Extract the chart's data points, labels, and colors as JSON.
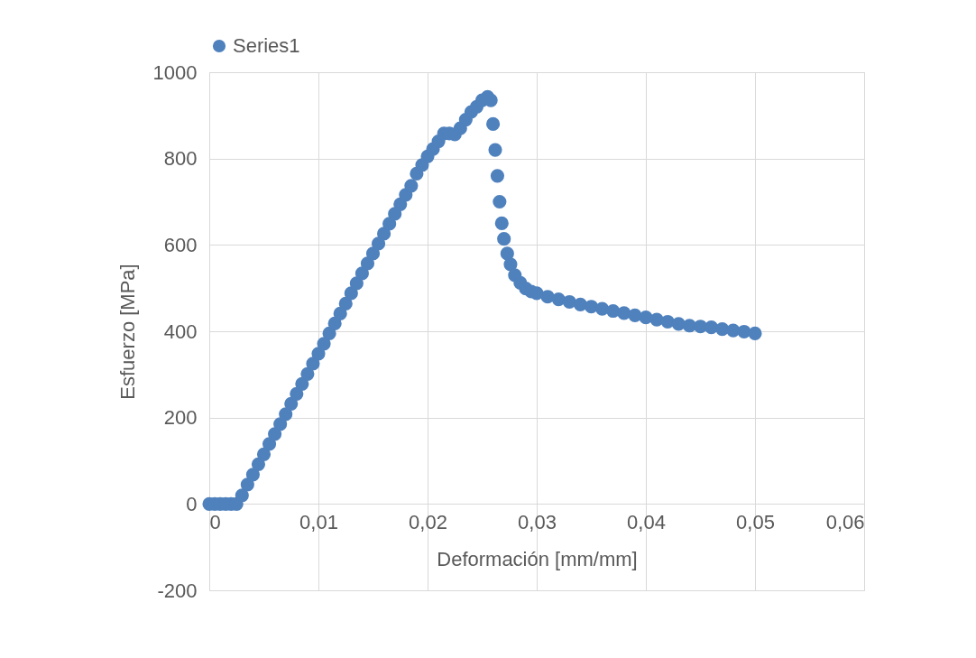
{
  "chart_data": {
    "type": "scatter",
    "xlabel": "Deformación [mm/mm]",
    "ylabel": "Esfuerzo [MPa]",
    "xlim": [
      0,
      0.06
    ],
    "xticks": [
      0,
      {
        "value": 0.01,
        "label": "0,01"
      },
      {
        "value": 0.02,
        "label": "0,02"
      },
      {
        "value": 0.03,
        "label": "0,03"
      },
      {
        "value": 0.04,
        "label": "0,04"
      },
      {
        "value": 0.05,
        "label": "0,05"
      },
      {
        "value": 0.06,
        "label": "0,06"
      }
    ],
    "ylim": [
      -200,
      1000
    ],
    "yticks": [
      -200,
      0,
      200,
      400,
      600,
      800,
      1000
    ],
    "grid": true,
    "legend": "top",
    "marker": "circle",
    "x": [
      0,
      0.0005,
      0.001,
      0.0015,
      0.002,
      0.0025,
      0.003,
      0.0035,
      0.004,
      0.0045,
      0.005,
      0.0055,
      0.006,
      0.0065,
      0.007,
      0.0075,
      0.008,
      0.0085,
      0.009,
      0.0095,
      0.01,
      0.0105,
      0.011,
      0.0115,
      0.012,
      0.0125,
      0.013,
      0.0135,
      0.014,
      0.0145,
      0.015,
      0.0155,
      0.016,
      0.0165,
      0.017,
      0.0175,
      0.018,
      0.0185,
      0.019,
      0.0195,
      0.02,
      0.0205,
      0.021,
      0.0215,
      0.022,
      0.0225,
      0.023,
      0.0235,
      0.024,
      0.0245,
      0.025,
      0.0255,
      0.0258,
      0.026,
      0.0262,
      0.0264,
      0.0266,
      0.0268,
      0.027,
      0.0273,
      0.0276,
      0.028,
      0.0285,
      0.029,
      0.0295,
      0.03,
      0.031,
      0.032,
      0.033,
      0.034,
      0.035,
      0.036,
      0.037,
      0.038,
      0.039,
      0.04,
      0.041,
      0.042,
      0.043,
      0.044,
      0.045,
      0.046,
      0.047,
      0.048,
      0.049,
      0.05
    ],
    "series": [
      {
        "name": "Series1",
        "color": "#4f81bd",
        "values": [
          0,
          0,
          0,
          0,
          0,
          0,
          20,
          45,
          68,
          92,
          115,
          139,
          162,
          185,
          208,
          232,
          255,
          278,
          301,
          325,
          348,
          371,
          395,
          418,
          441,
          464,
          488,
          511,
          534,
          557,
          580,
          603,
          626,
          649,
          672,
          694,
          716,
          737,
          765,
          785,
          805,
          822,
          840,
          858,
          858,
          856,
          870,
          890,
          908,
          920,
          935,
          943,
          935,
          880,
          820,
          760,
          700,
          650,
          614,
          580,
          555,
          530,
          512,
          499,
          492,
          488,
          480,
          474,
          468,
          462,
          457,
          452,
          447,
          442,
          437,
          432,
          427,
          422,
          417,
          413,
          411,
          409,
          405,
          402,
          399,
          395
        ]
      }
    ]
  }
}
